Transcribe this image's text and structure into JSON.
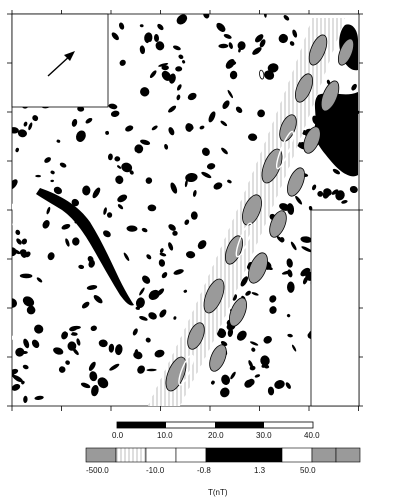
{
  "figure": {
    "north_arrow_icon": "arrow-up-right-icon",
    "contour_color": "#000000",
    "positive_line_color": "#ffffff"
  },
  "distance_scale": {
    "ticks": [
      "0.0",
      "10.0",
      "20.0",
      "30.0",
      "40.0"
    ]
  },
  "color_scale": {
    "classes": [
      {
        "label": "-500.0",
        "color": "#9a9a9a"
      },
      {
        "label": "-10.0",
        "color": "#ffffff",
        "pattern": "hatch"
      },
      {
        "label": "",
        "color": "#ffffff"
      },
      {
        "label": "-0.8",
        "color": "#000000"
      },
      {
        "label": "1.3",
        "color": "#000000"
      },
      {
        "label": "50.0",
        "color": "#ffffff"
      },
      {
        "label": "",
        "color": "#9a9a9a"
      }
    ],
    "unit_label": "T(nT)"
  }
}
